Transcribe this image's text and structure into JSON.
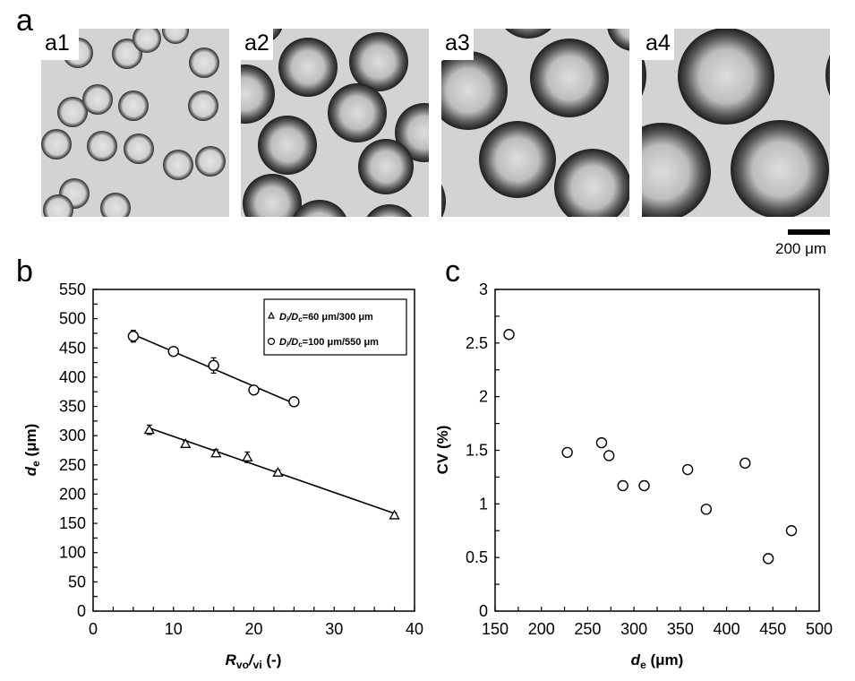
{
  "figure": {
    "panel_letters": {
      "a": "a",
      "b": "b",
      "c": "c"
    },
    "micrographs": [
      {
        "label": "a1"
      },
      {
        "label": "a2"
      },
      {
        "label": "a3"
      },
      {
        "label": "a4"
      }
    ],
    "scale_bar": {
      "label": "200 μm"
    }
  },
  "chart_data": [
    {
      "id": "b",
      "type": "scatter",
      "title": "",
      "xlabel": "R_vo/vi (-)",
      "xlabel_main": "R",
      "xlabel_sub1": "vo",
      "xlabel_sep": "/",
      "xlabel_sub2": "vi",
      "xlabel_tail": " (-)",
      "ylabel": "d_e (μm)",
      "ylabel_main": "d",
      "ylabel_sub": "e",
      "ylabel_tail": " (μm)",
      "xlim": [
        0,
        40
      ],
      "ylim": [
        0,
        550
      ],
      "xticks": [
        0,
        10,
        20,
        30,
        40
      ],
      "yticks": [
        0,
        50,
        100,
        150,
        200,
        250,
        300,
        350,
        400,
        450,
        500,
        550
      ],
      "grid": false,
      "legend_position": "top-right",
      "series": [
        {
          "name": "Di/Dc=60 μm/300 μm",
          "legend_prefix": "D",
          "legend_sub1": "i",
          "legend_mid": "/D",
          "legend_sub2": "c",
          "legend_suffix": "=60 μm/300 μm",
          "marker": "triangle",
          "x": [
            7,
            11.5,
            15.3,
            19.2,
            23,
            37.5
          ],
          "y": [
            310,
            286,
            270,
            263,
            237,
            164
          ],
          "error": [
            8,
            5,
            6,
            9,
            4,
            4
          ],
          "fit": {
            "x": [
              7,
              37.5
            ],
            "y": [
              313,
              167
            ]
          }
        },
        {
          "name": "Di/Dc=100 μm/550 μm",
          "legend_prefix": "D",
          "legend_sub1": "i",
          "legend_mid": "/D",
          "legend_sub2": "c",
          "legend_suffix": "=100 μm/550 μm",
          "marker": "circle",
          "x": [
            5,
            10,
            15,
            20,
            25
          ],
          "y": [
            470,
            444,
            420,
            378,
            358
          ],
          "error": [
            10,
            3,
            13,
            3,
            6
          ],
          "fit": {
            "x": [
              5,
              25
            ],
            "y": [
              473,
              355
            ]
          }
        }
      ]
    },
    {
      "id": "c",
      "type": "scatter",
      "title": "",
      "xlabel": "d_e (μm)",
      "xlabel_main": "d",
      "xlabel_sub": "e",
      "xlabel_tail": " (μm)",
      "ylabel": "CV (%)",
      "xlim": [
        150,
        500
      ],
      "ylim": [
        0,
        3
      ],
      "xticks": [
        150,
        200,
        250,
        300,
        350,
        400,
        450,
        500
      ],
      "yticks": [
        0,
        0.5,
        1,
        1.5,
        2,
        2.5,
        3
      ],
      "ytick_labels": [
        "0",
        "0.5",
        "1",
        "1.5",
        "2",
        "2.5",
        "3"
      ],
      "grid": false,
      "series": [
        {
          "name": "CV",
          "marker": "circle",
          "x": [
            165,
            228,
            265,
            273,
            288,
            311,
            358,
            378,
            420,
            445,
            470
          ],
          "y": [
            2.58,
            1.48,
            1.57,
            1.45,
            1.17,
            1.17,
            1.32,
            0.95,
            1.38,
            0.49,
            0.75
          ]
        }
      ]
    }
  ]
}
